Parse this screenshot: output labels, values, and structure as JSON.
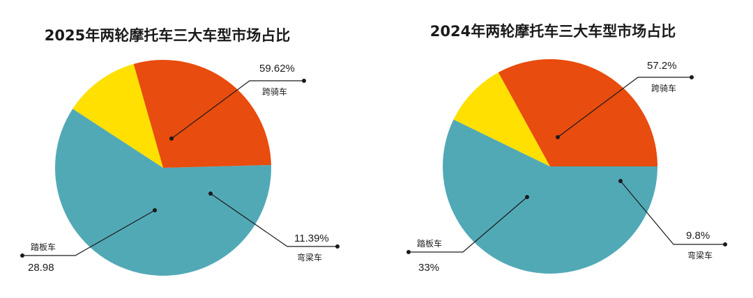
{
  "chart_data": [
    {
      "type": "pie",
      "title": "2025年两轮摩托车三大车型市场占比",
      "slices": [
        {
          "name": "跨骑车",
          "value": 59.62,
          "value_label": "59.62%",
          "color": "#52a9b6"
        },
        {
          "name": "弯梁车",
          "value": 11.39,
          "value_label": "11.39%",
          "color": "#ffe000"
        },
        {
          "name": "踏板车",
          "value": 28.98,
          "value_label": "28.98",
          "color": "#e84c0e"
        }
      ],
      "legend": "none"
    },
    {
      "type": "pie",
      "title": "2024年两轮摩托车三大车型市场占比",
      "slices": [
        {
          "name": "跨骑车",
          "value": 57.2,
          "value_label": "57.2%",
          "color": "#52a9b6"
        },
        {
          "name": "弯梁车",
          "value": 9.8,
          "value_label": "9.8%",
          "color": "#ffe000"
        },
        {
          "name": "踏板车",
          "value": 33,
          "value_label": "33%",
          "color": "#e84c0e"
        }
      ],
      "legend": "none"
    }
  ]
}
